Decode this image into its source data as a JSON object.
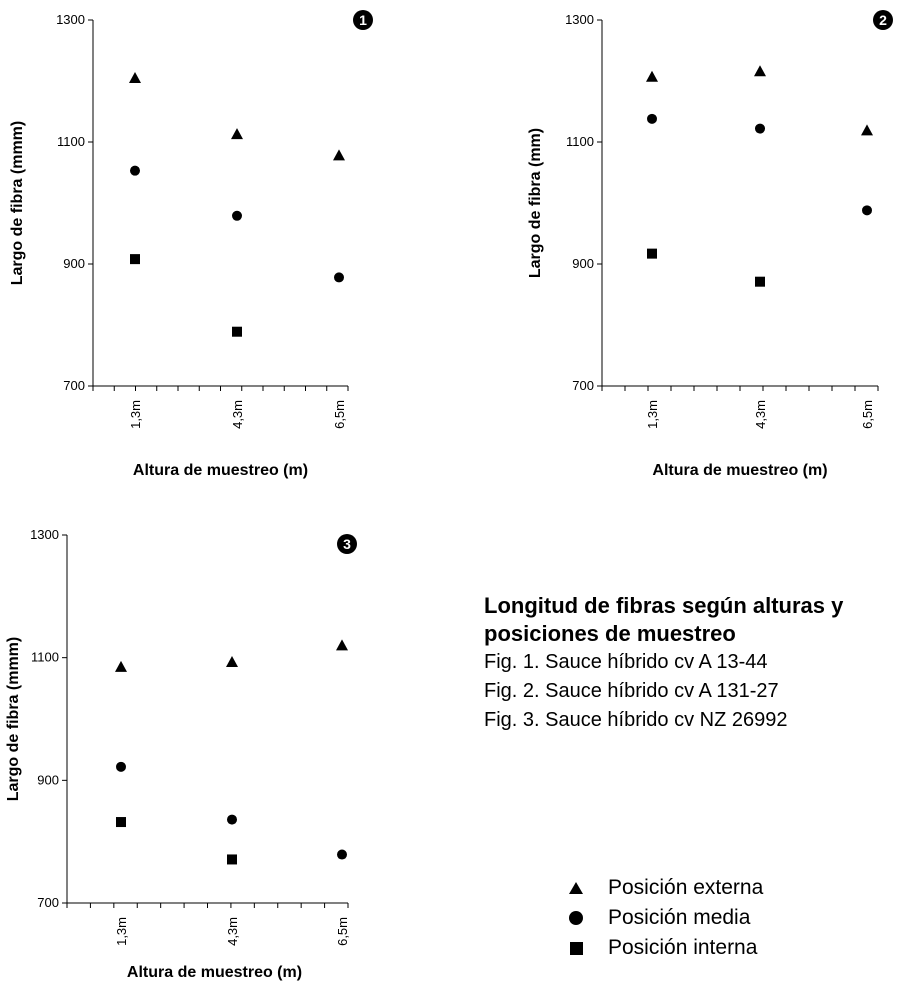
{
  "chart_data": [
    {
      "type": "scatter",
      "badge": "1",
      "categories": [
        "1,3m",
        "4,3m",
        "6,5m"
      ],
      "ylim": [
        700,
        1300
      ],
      "yticks": [
        "700",
        "900",
        "1100",
        "1300"
      ],
      "xlabel": "Altura de muestreo (m)",
      "ylabel": "Largo de fibra (mmm)",
      "series": [
        {
          "name": "Posición externa",
          "marker": "triangle",
          "values": [
            1205,
            1113,
            1078
          ]
        },
        {
          "name": "Posición media",
          "marker": "circle",
          "values": [
            1053,
            979,
            878
          ]
        },
        {
          "name": "Posición interna",
          "marker": "square",
          "values": [
            908,
            789,
            null
          ]
        }
      ]
    },
    {
      "type": "scatter",
      "badge": "2",
      "categories": [
        "1,3m",
        "4,3m",
        "6,5m"
      ],
      "ylim": [
        700,
        1300
      ],
      "yticks": [
        "700",
        "900",
        "1100",
        "1300"
      ],
      "xlabel": "Altura de muestreo (m)",
      "ylabel": "Largo de fibra (mm)",
      "series": [
        {
          "name": "Posición externa",
          "marker": "triangle",
          "values": [
            1207,
            1216,
            1119
          ]
        },
        {
          "name": "Posición media",
          "marker": "circle",
          "values": [
            1138,
            1122,
            988
          ]
        },
        {
          "name": "Posición interna",
          "marker": "square",
          "values": [
            917,
            871,
            null
          ]
        }
      ]
    },
    {
      "type": "scatter",
      "badge": "3",
      "categories": [
        "1,3m",
        "4,3m",
        "6,5m"
      ],
      "ylim": [
        700,
        1300
      ],
      "yticks": [
        "700",
        "900",
        "1100",
        "1300"
      ],
      "xlabel": "Altura de muestreo (m)",
      "ylabel": "Largo de fibra (mmm)",
      "series": [
        {
          "name": "Posición externa",
          "marker": "triangle",
          "values": [
            1085,
            1093,
            1120
          ]
        },
        {
          "name": "Posición media",
          "marker": "circle",
          "values": [
            922,
            836,
            779
          ]
        },
        {
          "name": "Posición interna",
          "marker": "square",
          "values": [
            832,
            771,
            null
          ]
        }
      ]
    }
  ],
  "caption": {
    "title_line1": "Longitud de fibras según alturas y",
    "title_line2": "posiciones de muestreo",
    "fig1": "Fig. 1. Sauce híbrido cv A 13-44",
    "fig2": "Fig. 2. Sauce híbrido cv A 131-27",
    "fig3": "Fig. 3. Sauce híbrido cv NZ 26992"
  },
  "legend": [
    {
      "label": "Posición externa",
      "marker": "triangle"
    },
    {
      "label": "Posición media",
      "marker": "circle"
    },
    {
      "label": "Posición interna",
      "marker": "square"
    }
  ]
}
